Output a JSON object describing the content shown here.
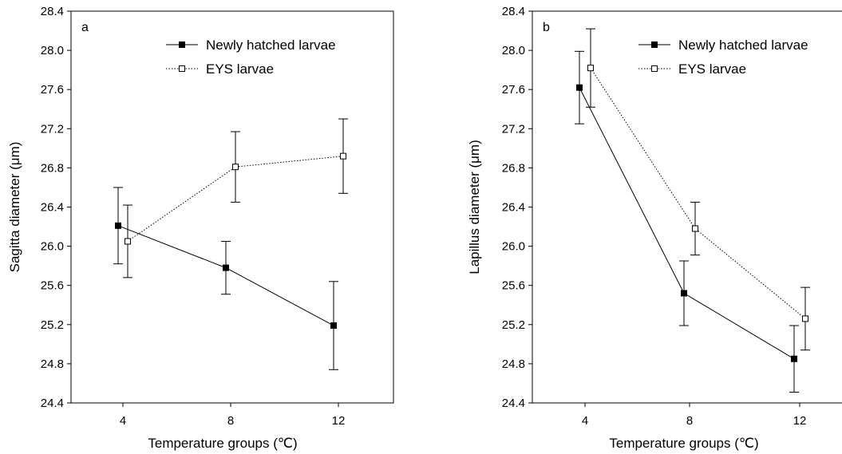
{
  "chart_data": [
    {
      "type": "line",
      "panel_label": "a",
      "xlabel": "Temperature groups (℃)",
      "ylabel": "Sagitta diameter (μm)",
      "categories": [
        "4",
        "8",
        "12"
      ],
      "ylim": [
        24.4,
        28.4
      ],
      "yticks": [
        "24.4",
        "24.8",
        "25.2",
        "25.6",
        "26.0",
        "26.4",
        "26.8",
        "27.2",
        "27.6",
        "28.0",
        "28.4"
      ],
      "legend_position": "top-right",
      "series": [
        {
          "name": "Newly hatched larvae",
          "values": [
            26.21,
            25.78,
            25.19
          ],
          "errors": [
            0.39,
            0.27,
            0.45
          ],
          "marker": "filled-square",
          "line": "solid",
          "color": "#000000"
        },
        {
          "name": "EYS larvae",
          "values": [
            26.05,
            26.81,
            26.92
          ],
          "errors": [
            0.37,
            0.36,
            0.38
          ],
          "marker": "open-square",
          "line": "dotted",
          "color": "#000000"
        }
      ]
    },
    {
      "type": "line",
      "panel_label": "b",
      "xlabel": "Temperature groups (℃)",
      "ylabel": "Lapillus diameter (μm)",
      "categories": [
        "4",
        "8",
        "12"
      ],
      "ylim": [
        24.4,
        28.4
      ],
      "yticks": [
        "24.4",
        "24.8",
        "25.2",
        "25.6",
        "26.0",
        "26.4",
        "26.8",
        "27.2",
        "27.6",
        "28.0",
        "28.4"
      ],
      "legend_position": "top-right",
      "series": [
        {
          "name": "Newly hatched larvae",
          "values": [
            27.62,
            25.52,
            24.85
          ],
          "errors": [
            0.37,
            0.33,
            0.34
          ],
          "marker": "filled-square",
          "line": "solid",
          "color": "#000000"
        },
        {
          "name": "EYS larvae",
          "values": [
            27.82,
            26.18,
            25.26
          ],
          "errors": [
            0.4,
            0.27,
            0.32
          ],
          "marker": "open-square",
          "line": "dotted",
          "color": "#000000"
        }
      ]
    }
  ]
}
